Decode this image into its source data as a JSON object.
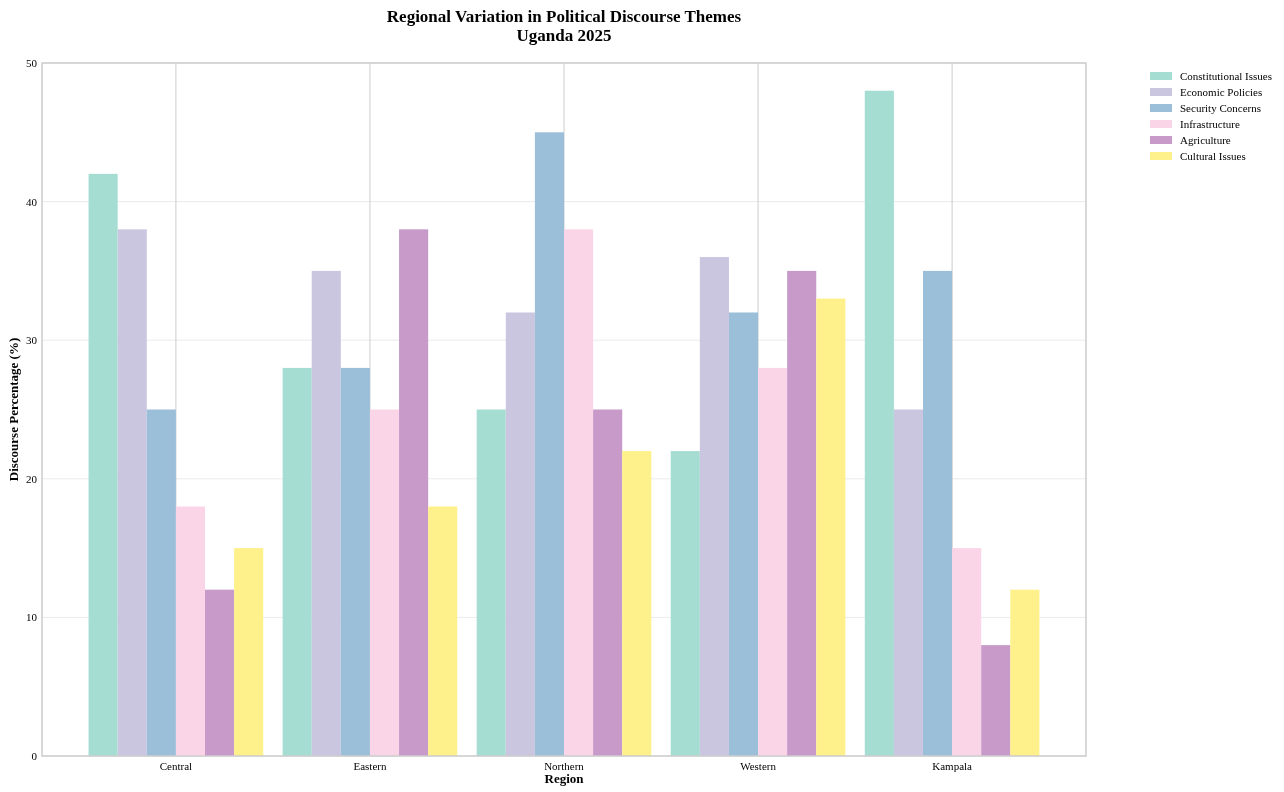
{
  "chart_data": {
    "type": "bar",
    "title": "Regional Variation in Political Discourse Themes\nUganda 2025",
    "xlabel": "Region",
    "ylabel": "Discourse Percentage (%)",
    "categories": [
      "Central",
      "Eastern",
      "Northern",
      "Western",
      "Kampala"
    ],
    "series": [
      {
        "name": "Constitutional Issues",
        "color": "#a5ddd3",
        "values": [
          42,
          28,
          25,
          22,
          48
        ]
      },
      {
        "name": "Economic Policies",
        "color": "#cbc6e0",
        "values": [
          38,
          35,
          32,
          36,
          25
        ]
      },
      {
        "name": "Security Concerns",
        "color": "#9bbfd9",
        "values": [
          25,
          28,
          45,
          32,
          35
        ]
      },
      {
        "name": "Infrastructure",
        "color": "#fad5e7",
        "values": [
          18,
          25,
          38,
          28,
          15
        ]
      },
      {
        "name": "Agriculture",
        "color": "#c79ac9",
        "values": [
          12,
          38,
          25,
          35,
          8
        ]
      },
      {
        "name": "Cultural Issues",
        "color": "#fef08a",
        "values": [
          15,
          18,
          22,
          33,
          12
        ]
      }
    ],
    "ylim": [
      0,
      50
    ],
    "yticks": [
      0,
      10,
      20,
      30,
      40,
      50
    ],
    "grid": true,
    "legend": "top right"
  }
}
